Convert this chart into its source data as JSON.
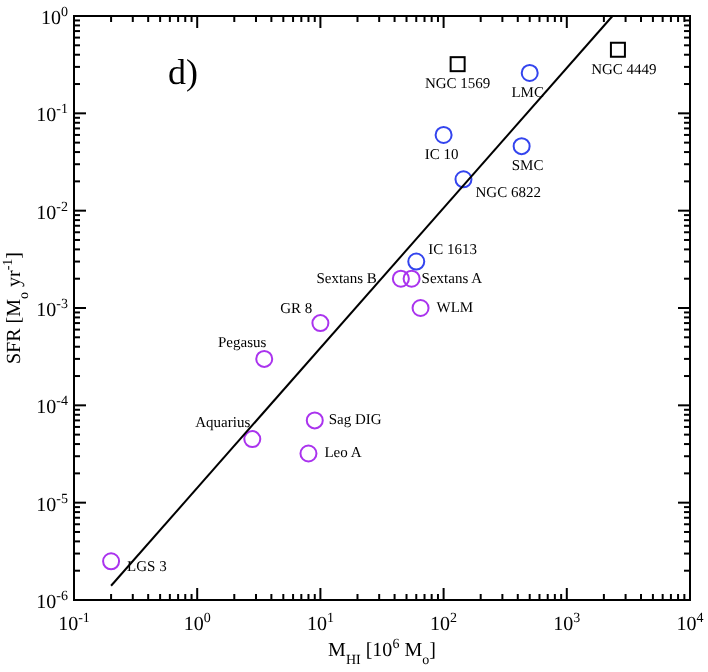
{
  "chart_data": {
    "type": "scatter",
    "log": "xy",
    "xlabel": "M$_{HI}$ [10$^{6}$ M$_{o}$]",
    "ylabel": "SFR [M$_{o}$ yr$^{-1}$]",
    "xlim": [
      0.1,
      10000
    ],
    "ylim": [
      1e-06,
      1
    ],
    "xticks": [
      {
        "value": 0.1,
        "label": "10$^{-1}$"
      },
      {
        "value": 1,
        "label": "10$^{0}$"
      },
      {
        "value": 10,
        "label": "10$^{1}$"
      },
      {
        "value": 100,
        "label": "10$^{2}$"
      },
      {
        "value": 1000,
        "label": "10$^{3}$"
      },
      {
        "value": 10000,
        "label": "10$^{4}$"
      }
    ],
    "yticks": [
      {
        "value": 1e-06,
        "label": "10$^{-6}$"
      },
      {
        "value": 1e-05,
        "label": "10$^{-5}$"
      },
      {
        "value": 0.0001,
        "label": "10$^{-4}$"
      },
      {
        "value": 0.001,
        "label": "10$^{-3}$"
      },
      {
        "value": 0.01,
        "label": "10$^{-2}$"
      },
      {
        "value": 0.1,
        "label": "10$^{-1}$"
      },
      {
        "value": 1,
        "label": "10$^{0}$"
      }
    ],
    "grid": false,
    "series": [
      {
        "type": "scatter",
        "marker": "circle",
        "color": "#aa33ee",
        "x": [
          0.2,
          2.8,
          9,
          8,
          3.5,
          10,
          65,
          45,
          55
        ],
        "values": [
          2.5e-06,
          4.5e-05,
          7e-05,
          3.2e-05,
          0.0003,
          0.0007,
          0.001,
          0.002,
          0.002
        ]
      },
      {
        "type": "scatter",
        "marker": "circle",
        "color": "#3344ee",
        "x": [
          60,
          145,
          100,
          430,
          500
        ],
        "values": [
          0.003,
          0.021,
          0.06,
          0.046,
          0.26
        ]
      },
      {
        "type": "scatter",
        "marker": "square",
        "color": "#000000",
        "x": [
          130,
          2600
        ],
        "values": [
          0.32,
          0.45
        ]
      },
      {
        "type": "line",
        "marker": "none",
        "color": "#000000",
        "x": [
          0.2,
          2350
        ],
        "values": [
          1.4e-06,
          1
        ]
      }
    ],
    "annotations": [
      "d)",
      {
        "text": "LGS 3",
        "x": 0.2,
        "y": 2.5e-06
      },
      {
        "text": "Aquarius",
        "x": 2.8,
        "y": 4.5e-05
      },
      {
        "text": "Sag DIG",
        "x": 9,
        "y": 7e-05
      },
      {
        "text": "Leo A",
        "x": 8,
        "y": 3.2e-05
      },
      {
        "text": "Pegasus",
        "x": 3.5,
        "y": 0.0003
      },
      {
        "text": "GR 8",
        "x": 10,
        "y": 0.0007
      },
      {
        "text": "WLM",
        "x": 65,
        "y": 0.001
      },
      {
        "text": "Sextans B",
        "x": 45,
        "y": 0.002
      },
      {
        "text": "Sextans A",
        "x": 55,
        "y": 0.002
      },
      {
        "text": "IC 1613",
        "x": 60,
        "y": 0.003
      },
      {
        "text": "NGC 6822",
        "x": 145,
        "y": 0.021
      },
      {
        "text": "IC 10",
        "x": 100,
        "y": 0.06
      },
      {
        "text": "SMC",
        "x": 430,
        "y": 0.046
      },
      {
        "text": "LMC",
        "x": 500,
        "y": 0.26
      },
      {
        "text": "NGC 1569",
        "x": 130,
        "y": 0.32
      },
      {
        "text": "NGC 4449",
        "x": 2600,
        "y": 0.45
      }
    ]
  }
}
